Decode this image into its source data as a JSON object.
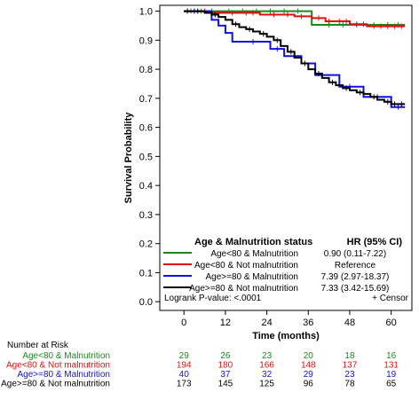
{
  "chart_data": {
    "type": "line",
    "subtype": "kaplan-meier",
    "xlabel": "Time (months)",
    "ylabel": "Survival Probability",
    "xlim": [
      -7,
      66
    ],
    "ylim": [
      -0.03,
      1.02
    ],
    "x_ticks": [
      0,
      12,
      24,
      36,
      48,
      60
    ],
    "y_ticks": [
      0.0,
      0.1,
      0.2,
      0.3,
      0.4,
      0.5,
      0.6,
      0.7,
      0.8,
      0.9,
      1.0
    ],
    "y_tick_labels": [
      "0.0",
      "0.1",
      "0.2",
      "0.3",
      "0.4",
      "0.5",
      "0.6",
      "0.7",
      "0.8",
      "0.9",
      "1.0"
    ],
    "grid": false,
    "series": [
      {
        "name": "Age<80 & Malnutrition",
        "color": "#1a8a1a",
        "hr": "0.90 (0.11-7.22)",
        "x": [
          0,
          37,
          37,
          64
        ],
        "y": [
          1.0,
          1.0,
          0.953,
          0.953
        ],
        "censor_x": [
          2,
          5,
          8,
          13,
          17,
          21,
          25,
          29,
          33,
          42,
          46,
          50,
          55,
          59,
          62
        ]
      },
      {
        "name": "Age<80 & Not malnutrition",
        "color": "#e01010",
        "hr": "Reference",
        "x": [
          0,
          8,
          8,
          22,
          22,
          32,
          32,
          37,
          37,
          41,
          41,
          48,
          48,
          53,
          53,
          64
        ],
        "y": [
          1.0,
          1.0,
          0.994,
          0.994,
          0.988,
          0.988,
          0.982,
          0.982,
          0.976,
          0.976,
          0.965,
          0.965,
          0.955,
          0.955,
          0.948,
          0.948
        ],
        "censor_x": [
          3,
          6,
          10,
          14,
          18,
          20,
          26,
          30,
          34,
          39,
          42,
          45,
          47,
          50,
          52,
          55,
          57,
          59,
          61,
          63
        ]
      },
      {
        "name": "Age>=80 & Malnutrition",
        "color": "#1010e0",
        "hr": "7.39 (2.97-18.37)",
        "x": [
          0,
          8,
          8,
          10,
          10,
          12,
          12,
          14,
          14,
          25,
          25,
          29,
          29,
          34,
          34,
          38,
          38,
          45,
          45,
          52,
          52,
          60,
          60,
          64
        ],
        "y": [
          1.0,
          1.0,
          0.97,
          0.97,
          0.95,
          0.95,
          0.925,
          0.925,
          0.895,
          0.895,
          0.87,
          0.87,
          0.845,
          0.845,
          0.82,
          0.82,
          0.78,
          0.78,
          0.74,
          0.74,
          0.705,
          0.705,
          0.67,
          0.67
        ],
        "censor_x": [
          3,
          20,
          27,
          40,
          48,
          56,
          62
        ]
      },
      {
        "name": "Age>=80 & Not malnutrition",
        "color": "#000000",
        "hr": "7.33 (3.42-15.69)",
        "x": [
          0,
          6,
          6,
          8,
          8,
          10,
          10,
          12,
          12,
          14,
          14,
          16,
          16,
          18,
          18,
          20,
          20,
          22,
          22,
          24,
          24,
          26,
          26,
          28,
          28,
          30,
          30,
          32,
          32,
          34,
          34,
          36,
          36,
          38,
          38,
          40,
          40,
          42,
          42,
          44,
          44,
          46,
          46,
          48,
          48,
          50,
          50,
          52,
          52,
          54,
          54,
          56,
          56,
          58,
          58,
          60,
          60,
          64
        ],
        "y": [
          1.0,
          1.0,
          0.994,
          0.994,
          0.988,
          0.988,
          0.98,
          0.98,
          0.97,
          0.97,
          0.955,
          0.955,
          0.945,
          0.945,
          0.938,
          0.938,
          0.93,
          0.93,
          0.922,
          0.922,
          0.912,
          0.912,
          0.9,
          0.9,
          0.88,
          0.88,
          0.86,
          0.86,
          0.84,
          0.84,
          0.82,
          0.82,
          0.8,
          0.8,
          0.785,
          0.785,
          0.77,
          0.77,
          0.755,
          0.755,
          0.745,
          0.745,
          0.735,
          0.735,
          0.728,
          0.728,
          0.72,
          0.72,
          0.715,
          0.715,
          0.705,
          0.705,
          0.695,
          0.695,
          0.688,
          0.688,
          0.68,
          0.68
        ],
        "censor_x": [
          1,
          4,
          9,
          15,
          19,
          23,
          27,
          31,
          35,
          39,
          43,
          47,
          51,
          55,
          59,
          61,
          63
        ]
      }
    ],
    "legend": {
      "title": "Age & Malnutrition status",
      "hr_header": "HR (95% CI)",
      "placement": "bottom-inside",
      "logrank": "Logrank P-value: <.0001",
      "censor_label": "+ Censor"
    },
    "at_risk": {
      "title": "Number at Risk",
      "times": [
        0,
        12,
        24,
        36,
        48,
        60
      ],
      "rows": [
        {
          "label": "Age<80 & Malnutrition",
          "color": "#1a8a1a",
          "values": [
            "29",
            "26",
            "23",
            "20",
            "18",
            "16"
          ]
        },
        {
          "label": "Age<80 & Not malnutrition",
          "color": "#e01010",
          "values": [
            "194",
            "180",
            "166",
            "148",
            "137",
            "131"
          ]
        },
        {
          "label": "Age>=80 & Malnutrition",
          "color": "#1010e0",
          "values": [
            "40",
            "37",
            "32",
            "29",
            "23",
            "19"
          ]
        },
        {
          "label": "Age>=80 & Not malnutrition",
          "color": "#000000",
          "values": [
            "173",
            "145",
            "125",
            "96",
            "78",
            "65"
          ]
        }
      ]
    }
  }
}
